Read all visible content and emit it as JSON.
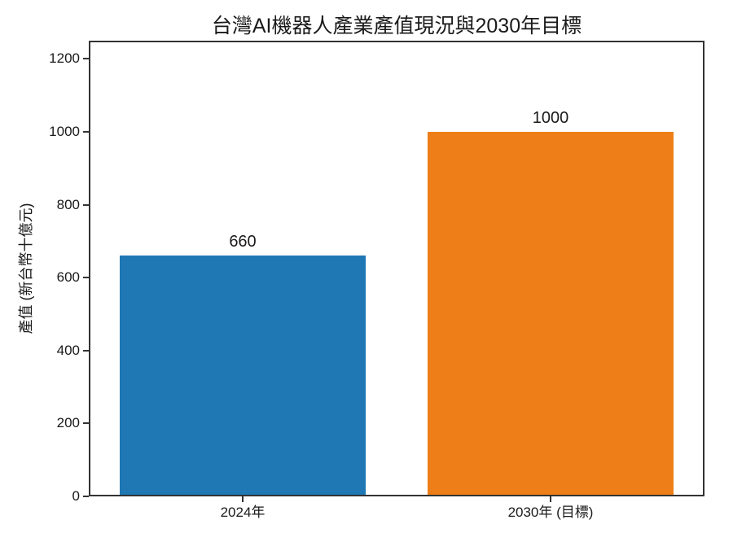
{
  "figure": {
    "background": "#ffffff"
  },
  "chart_data": {
    "type": "bar",
    "title": "台灣AI機器人產業產值現況與2030年目標",
    "ylabel": "產值 (新台幣十億元)",
    "xlabel": "",
    "categories": [
      "2024年",
      "2030年 (目標)"
    ],
    "values": [
      660,
      1000
    ],
    "bar_colors": [
      "#1f77b4",
      "#ee7f18"
    ],
    "yticks": [
      0,
      200,
      400,
      600,
      800,
      1000,
      1200
    ],
    "ylim": [
      0,
      1250
    ],
    "grid": false,
    "legend": "none",
    "spine_color": "#333333",
    "text_color": "#1a1a1a"
  }
}
